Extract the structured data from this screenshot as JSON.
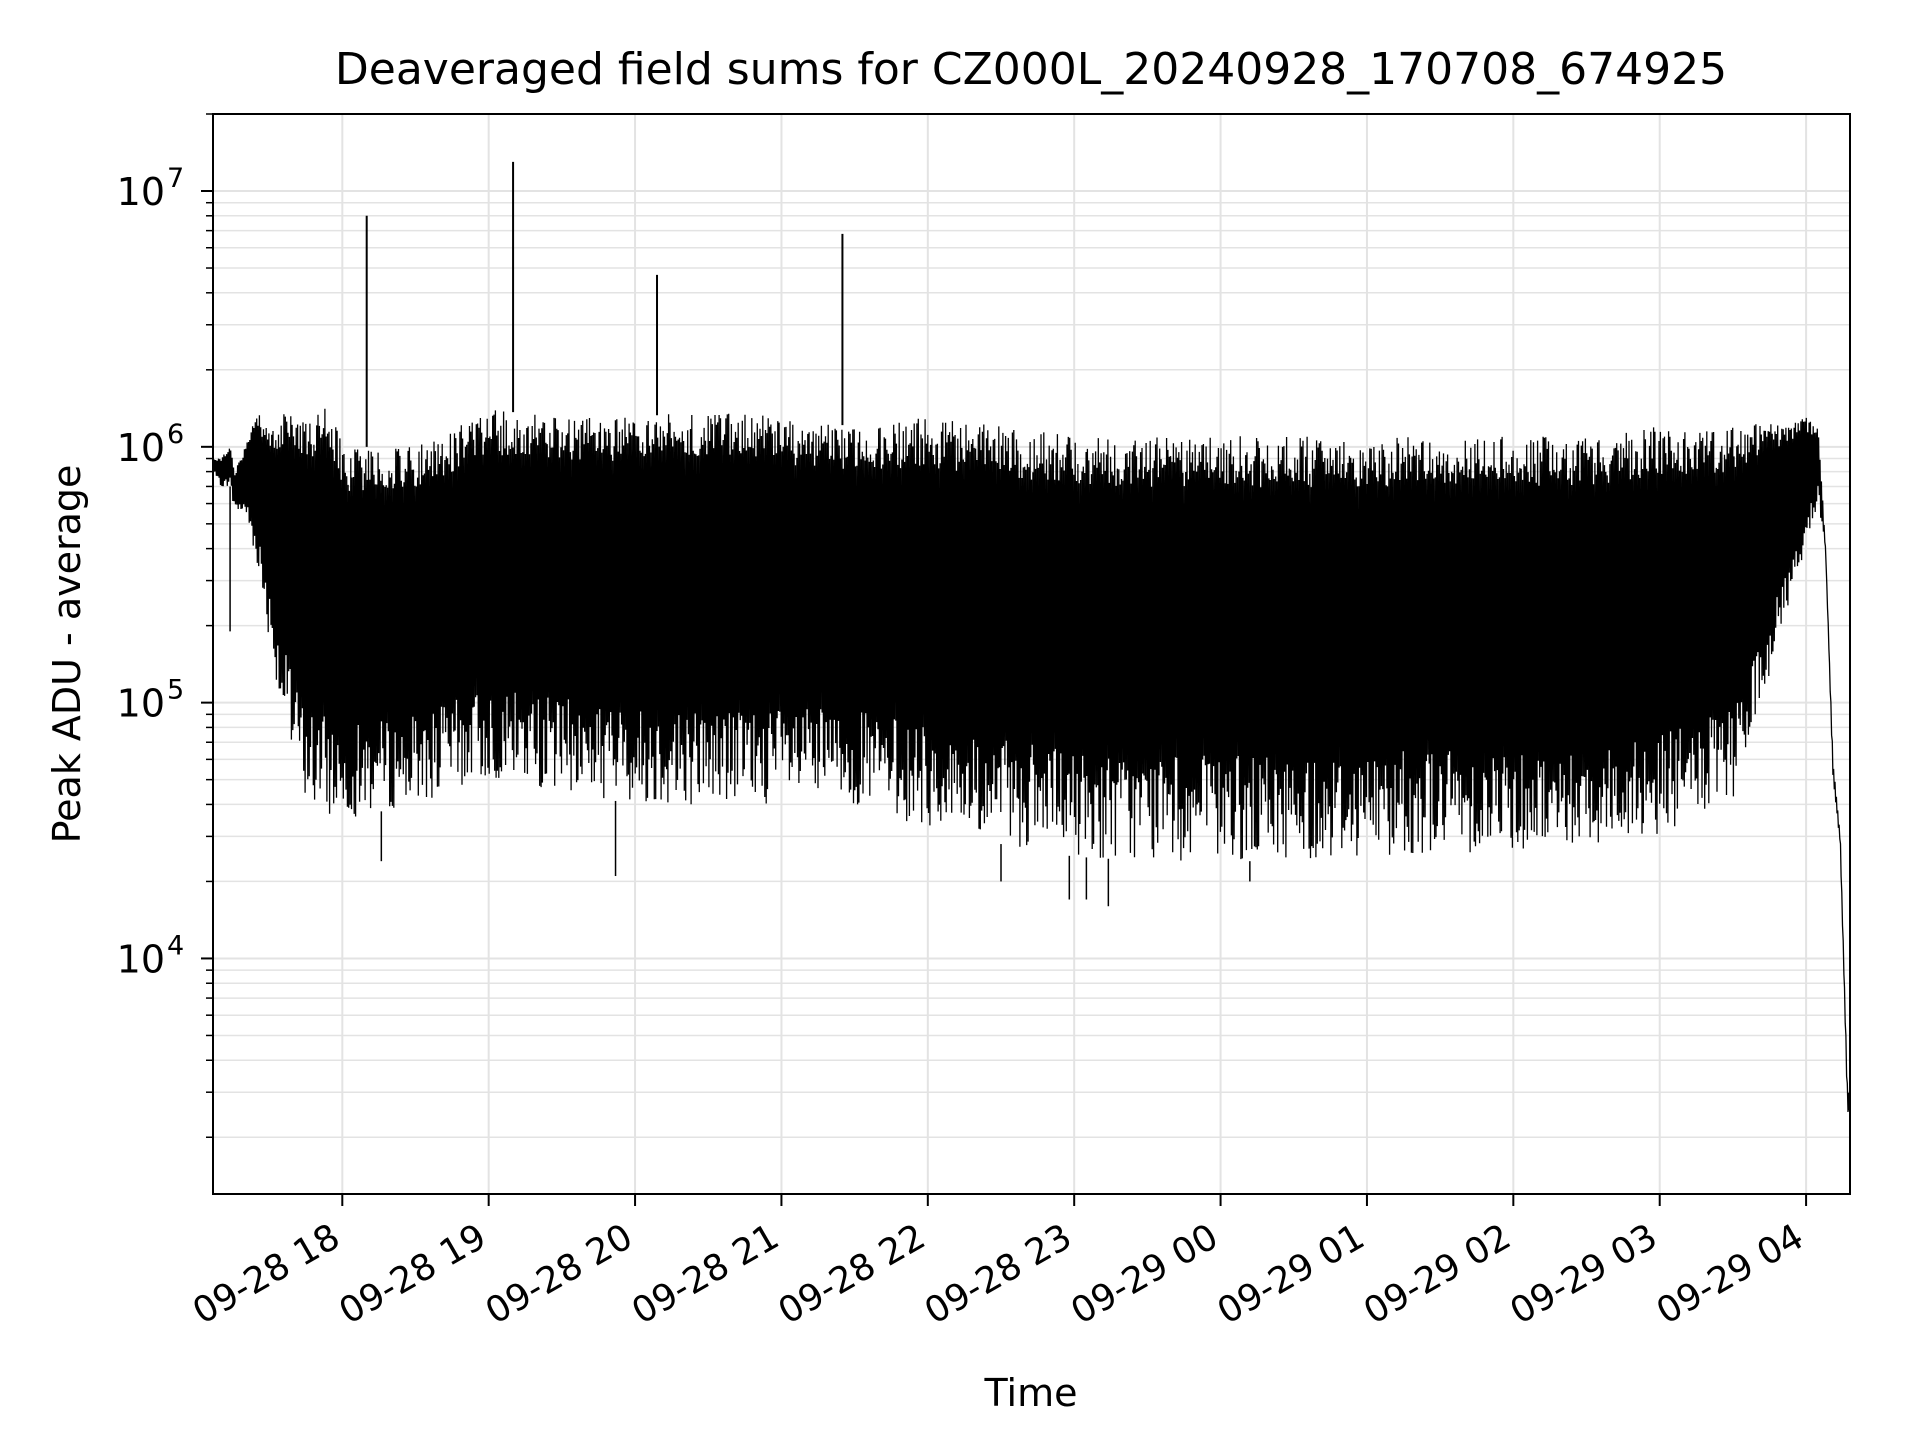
{
  "chart_data": {
    "type": "line",
    "title": "Deaveraged field sums for CZ000L_20240928_170708_674925",
    "xlabel": "Time",
    "ylabel": "Peak ADU - average",
    "x_scale": "time",
    "y_scale": "log",
    "xlim": [
      "2024-09-28 17:07",
      "2024-09-29 04:18"
    ],
    "ylim": [
      1200,
      20000000
    ],
    "x_ticks": [
      {
        "t": "2024-09-28 18:00",
        "label": "09-28 18"
      },
      {
        "t": "2024-09-28 19:00",
        "label": "09-28 19"
      },
      {
        "t": "2024-09-28 20:00",
        "label": "09-28 20"
      },
      {
        "t": "2024-09-28 21:00",
        "label": "09-28 21"
      },
      {
        "t": "2024-09-28 22:00",
        "label": "09-28 22"
      },
      {
        "t": "2024-09-28 23:00",
        "label": "09-28 23"
      },
      {
        "t": "2024-09-29 00:00",
        "label": "09-29 00"
      },
      {
        "t": "2024-09-29 01:00",
        "label": "09-29 01"
      },
      {
        "t": "2024-09-29 02:00",
        "label": "09-29 02"
      },
      {
        "t": "2024-09-29 03:00",
        "label": "09-29 03"
      },
      {
        "t": "2024-09-29 04:00",
        "label": "09-29 04"
      }
    ],
    "y_ticks": [
      {
        "value": 10000,
        "base": "10",
        "exp": "4"
      },
      {
        "value": 100000,
        "base": "10",
        "exp": "5"
      },
      {
        "value": 1000000,
        "base": "10",
        "exp": "6"
      },
      {
        "value": 10000000,
        "base": "10",
        "exp": "7"
      }
    ],
    "grid": "major and minor",
    "series": [
      {
        "color": "#000000",
        "x": [
          "2024-09-28 17:07",
          "2024-09-28 17:10",
          "2024-09-28 17:14",
          "2024-09-28 17:16",
          "2024-09-28 17:20",
          "2024-09-28 17:25",
          "2024-09-28 17:30",
          "2024-09-28 17:35",
          "2024-09-28 17:40",
          "2024-09-28 17:45",
          "2024-09-28 17:50",
          "2024-09-28 17:55",
          "2024-09-28 18:00",
          "2024-09-28 18:30",
          "2024-09-28 19:00",
          "2024-09-28 19:30",
          "2024-09-28 20:00",
          "2024-09-28 20:30",
          "2024-09-28 21:00",
          "2024-09-28 21:30",
          "2024-09-28 22:00",
          "2024-09-28 22:30",
          "2024-09-28 23:00",
          "2024-09-28 23:30",
          "2024-09-29 00:00",
          "2024-09-29 00:30",
          "2024-09-29 01:00",
          "2024-09-29 01:30",
          "2024-09-29 02:00",
          "2024-09-29 02:30",
          "2024-09-29 03:00",
          "2024-09-29 03:30",
          "2024-09-29 04:00",
          "2024-09-29 04:05",
          "2024-09-29 04:08",
          "2024-09-29 04:11",
          "2024-09-29 04:14",
          "2024-09-29 04:17"
        ],
        "y_upper": [
          900000,
          900000,
          1000000,
          800000,
          1000000,
          1400000,
          1200000,
          1300000,
          1500000,
          1300000,
          1400000,
          1500000,
          1000000,
          1000000,
          1400000,
          1300000,
          1300000,
          1400000,
          1300000,
          1200000,
          1300000,
          1200000,
          1100000,
          1100000,
          1100000,
          1100000,
          1100000,
          1100000,
          1100000,
          1100000,
          1200000,
          1200000,
          1300000,
          1200000,
          400000,
          60000,
          30000,
          3000
        ],
        "y_lower": [
          800000,
          700000,
          700000,
          550000,
          550000,
          350000,
          180000,
          90000,
          55000,
          42000,
          36000,
          35000,
          35000,
          40000,
          50000,
          45000,
          40000,
          40000,
          40000,
          40000,
          32000,
          28000,
          25000,
          24000,
          24000,
          24000,
          25000,
          26000,
          26000,
          27000,
          30000,
          40000,
          400000,
          600000,
          400000,
          50000,
          28000,
          2500
        ],
        "spikes": [
          {
            "t": "2024-09-28 18:10",
            "value": 8000000
          },
          {
            "t": "2024-09-28 19:10",
            "value": 13000000
          },
          {
            "t": "2024-09-28 20:09",
            "value": 4700000
          },
          {
            "t": "2024-09-28 21:25",
            "value": 6800000
          }
        ],
        "dips": [
          {
            "t": "2024-09-28 17:14",
            "value": 190000
          },
          {
            "t": "2024-09-28 18:16",
            "value": 24000
          },
          {
            "t": "2024-09-28 19:52",
            "value": 21000
          },
          {
            "t": "2024-09-28 22:30",
            "value": 20000
          },
          {
            "t": "2024-09-28 22:58",
            "value": 17000
          },
          {
            "t": "2024-09-28 23:05",
            "value": 17000
          },
          {
            "t": "2024-09-28 23:14",
            "value": 16000
          },
          {
            "t": "2024-09-29 00:12",
            "value": 20000
          }
        ]
      }
    ]
  }
}
